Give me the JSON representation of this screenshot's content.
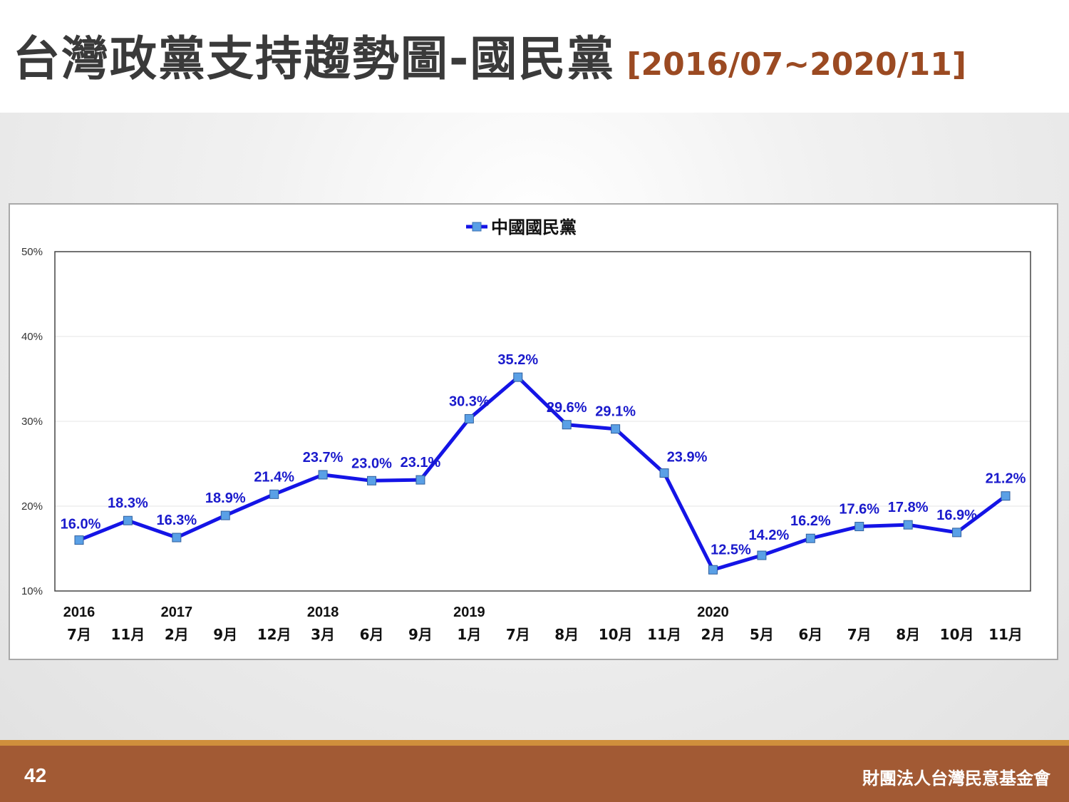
{
  "slide": {
    "title": "台灣政黨支持趨勢圖-國民黨",
    "date_range": "[2016/07~2020/11]",
    "page_number": "42",
    "organization": "財團法人台灣民意基金會"
  },
  "colors": {
    "series_line": "#1414e6",
    "marker_fill": "#5aa0e6",
    "data_label": "#1a1acc",
    "title_text": "#3a3a3a",
    "range_text": "#9b4a22",
    "footer_bar": "#a25a34",
    "footer_accent": "#cf8f3c"
  },
  "chart_data": {
    "type": "line",
    "legend_position": "top-center",
    "grid": true,
    "ylim": [
      10,
      50
    ],
    "y_ticks": [
      "10%",
      "20%",
      "30%",
      "40%",
      "50%"
    ],
    "year_labels": [
      {
        "label": "2016",
        "index": 0
      },
      {
        "label": "2017",
        "index": 2
      },
      {
        "label": "2018",
        "index": 5
      },
      {
        "label": "2019",
        "index": 8
      },
      {
        "label": "2020",
        "index": 13
      }
    ],
    "categories": [
      "7月",
      "11月",
      "2月",
      "9月",
      "12月",
      "3月",
      "6月",
      "9月",
      "1月",
      "7月",
      "8月",
      "10月",
      "11月",
      "2月",
      "5月",
      "6月",
      "7月",
      "8月",
      "10月",
      "11月"
    ],
    "series": [
      {
        "name": "中國國民黨",
        "values": [
          16.0,
          18.3,
          16.3,
          18.9,
          21.4,
          23.7,
          23.0,
          23.1,
          30.3,
          35.2,
          29.6,
          29.1,
          23.9,
          12.5,
          14.2,
          16.2,
          17.6,
          17.8,
          16.9,
          21.2
        ],
        "labels": [
          "16.0%",
          "18.3%",
          "16.3%",
          "18.9%",
          "21.4%",
          "23.7%",
          "23.0%",
          "23.1%",
          "30.3%",
          "35.2%",
          "29.6%",
          "29.1%",
          "23.9%",
          "12.5%",
          "14.2%",
          "16.2%",
          "17.6%",
          "17.8%",
          "16.9%",
          "21.2%"
        ]
      }
    ]
  }
}
